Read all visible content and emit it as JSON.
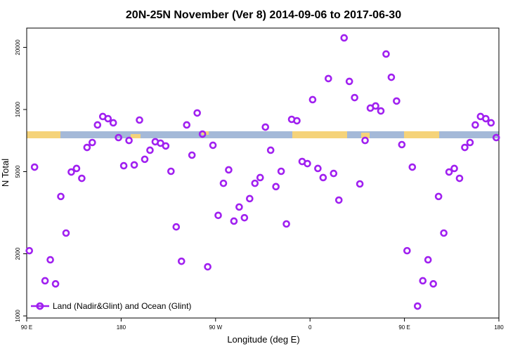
{
  "chart_data": {
    "type": "scatter",
    "title": "20N-25N November (Ver 8)   2014-09-06 to 2017-06-30",
    "x_label": "Longitude (deg E)",
    "y_label": "N Total",
    "log_y": true,
    "legend": "bottom-left",
    "xlim": [
      90,
      540
    ],
    "xticks": [
      {
        "value": 90,
        "label": "90 E"
      },
      {
        "value": 180,
        "label": "180"
      },
      {
        "value": 270,
        "label": "90 W"
      },
      {
        "value": 360,
        "label": "0"
      },
      {
        "value": 450,
        "label": "90 E"
      },
      {
        "value": 540,
        "label": "180"
      }
    ],
    "ylim": [
      977,
      24800
    ],
    "yticks": [
      1000,
      2000,
      5000,
      10000,
      20000
    ],
    "series": [
      {
        "name": "Land (Nadir&Glint) and Ocean (Glint)",
        "color": "#a020f0",
        "x": [
          92.5,
          97.5,
          102.5,
          107.5,
          112.5,
          117.5,
          122.5,
          127.5,
          132.5,
          137.5,
          142.5,
          147.5,
          152.5,
          157.5,
          162.5,
          167.5,
          172.5,
          177.5,
          182.5,
          187.5,
          192.5,
          197.5,
          202.5,
          207.5,
          212.5,
          217.5,
          222.5,
          227.5,
          232.5,
          237.5,
          242.5,
          247.5,
          252.5,
          257.5,
          262.5,
          267.5,
          272.5,
          277.5,
          282.5,
          287.5,
          292.5,
          297.5,
          302.5,
          307.5,
          312.5,
          317.5,
          322.5,
          327.5,
          332.5,
          337.5,
          342.5,
          347.5,
          352.5,
          357.5,
          362.5,
          367.5,
          372.5,
          377.5,
          382.5,
          387.5,
          392.5,
          397.5,
          402.5,
          407.5,
          412.5,
          417.5,
          422.5,
          427.5,
          432.5,
          437.5,
          442.5,
          447.5,
          452.5,
          457.5,
          462.5,
          467.5,
          472.5,
          477.5,
          482.5,
          487.5,
          492.5,
          497.5,
          502.5,
          507.5,
          512.5,
          517.5,
          522.5,
          527.5,
          532.5,
          537.5
        ],
        "values": [
          2070,
          5260,
          1116,
          1480,
          1870,
          1430,
          3790,
          2520,
          4980,
          5180,
          4640,
          6550,
          6920,
          8420,
          9250,
          9030,
          8620,
          7310,
          5340,
          7080,
          5390,
          8890,
          5740,
          6350,
          6980,
          6870,
          6660,
          5020,
          2700,
          1840,
          8420,
          6010,
          9620,
          7600,
          1730,
          6710,
          3070,
          4390,
          5100,
          2880,
          3370,
          2990,
          3700,
          4390,
          4680,
          8220,
          6350,
          4230,
          5020,
          2790,
          8960,
          8820,
          5600,
          5470,
          11160,
          5180,
          4680,
          14120,
          4900,
          3640,
          22230,
          13680,
          11420,
          4360,
          7080,
          10160,
          10400,
          9840,
          18570,
          14330,
          10990,
          6760,
          2070,
          5260,
          1116,
          1480,
          1870,
          1430,
          3790,
          2520,
          4980,
          5180,
          4640,
          6550,
          6920,
          8420,
          9250,
          9030,
          8620,
          7310
        ]
      }
    ]
  }
}
